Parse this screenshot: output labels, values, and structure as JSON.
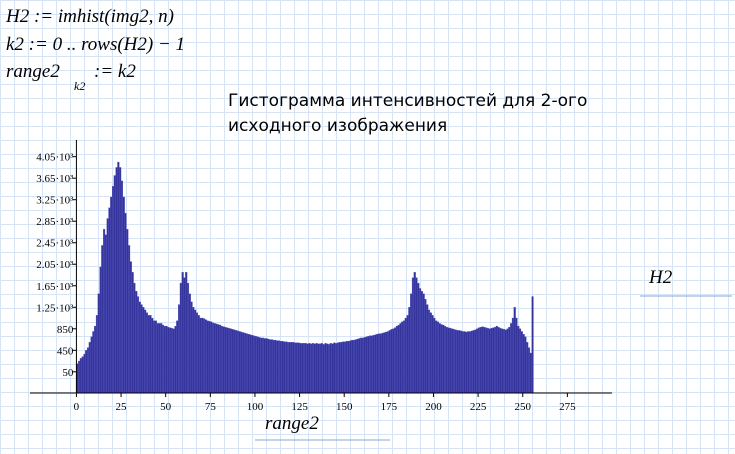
{
  "worksheet": {
    "line1": "H2 := imhist(img2, n)",
    "line2": "k2 := 0 .. rows(H2) − 1",
    "line3": {
      "lhs": "range2",
      "subscript": "k2",
      "rhs": ":= k2"
    }
  },
  "chart_data": {
    "type": "histogram",
    "title_lines": [
      "Гистограмма интенсивностей для 2-ого",
      "исходного изображения"
    ],
    "xlabel": "range2",
    "ylabel": "H2",
    "color": "#34349c",
    "xlim": [
      -26,
      300
    ],
    "ylim": [
      -344,
      4360
    ],
    "xticks": [
      0,
      25,
      50,
      75,
      100,
      125,
      150,
      175,
      200,
      225,
      250,
      275
    ],
    "yticks": [
      50,
      450,
      850,
      {
        "value": 1250,
        "label": "1.25·10³"
      },
      {
        "value": 1650,
        "label": "1.65·10³"
      },
      {
        "value": 2050,
        "label": "2.05·10³"
      },
      {
        "value": 2450,
        "label": "2.45·10³"
      },
      {
        "value": 2850,
        "label": "2.85·10³"
      },
      {
        "value": 3250,
        "label": "3.25·10³"
      },
      {
        "value": 3650,
        "label": "3.65·10³"
      },
      {
        "value": 4050,
        "label": "4.05·10³"
      }
    ],
    "values": [
      200,
      250,
      300,
      330,
      380,
      450,
      500,
      600,
      700,
      800,
      900,
      1100,
      1500,
      2000,
      2400,
      2700,
      2600,
      2900,
      3100,
      3300,
      3500,
      3700,
      3850,
      3950,
      3850,
      3600,
      3300,
      3000,
      2700,
      2400,
      2100,
      1900,
      1700,
      1550,
      1450,
      1350,
      1300,
      1250,
      1200,
      1150,
      1100,
      1100,
      1050,
      1000,
      1000,
      950,
      950,
      950,
      920,
      900,
      900,
      880,
      870,
      860,
      850,
      900,
      1000,
      1300,
      1700,
      1900,
      1800,
      1900,
      1700,
      1500,
      1350,
      1250,
      1200,
      1150,
      1100,
      1050,
      1050,
      1040,
      1020,
      1000,
      990,
      980,
      960,
      950,
      940,
      930,
      920,
      900,
      890,
      880,
      870,
      860,
      850,
      840,
      830,
      820,
      810,
      800,
      790,
      780,
      770,
      760,
      750,
      740,
      730,
      720,
      710,
      700,
      690,
      680,
      680,
      670,
      670,
      660,
      650,
      650,
      640,
      640,
      630,
      630,
      620,
      620,
      610,
      610,
      600,
      600,
      600,
      600,
      590,
      590,
      590,
      580,
      580,
      580,
      580,
      570,
      580,
      570,
      580,
      570,
      580,
      570,
      570,
      580,
      560,
      580,
      570,
      560,
      580,
      570,
      590,
      580,
      590,
      600,
      600,
      610,
      610,
      620,
      620,
      630,
      640,
      640,
      650,
      660,
      670,
      680,
      680,
      690,
      700,
      710,
      720,
      720,
      730,
      740,
      750,
      760,
      760,
      770,
      780,
      790,
      800,
      820,
      840,
      850,
      870,
      900,
      920,
      950,
      980,
      1000,
      1050,
      1100,
      1250,
      1500,
      1800,
      1900,
      1800,
      1700,
      1600,
      1550,
      1500,
      1400,
      1300,
      1200,
      1150,
      1100,
      1050,
      1000,
      980,
      950,
      930,
      920,
      900,
      880,
      870,
      860,
      850,
      840,
      830,
      820,
      820,
      810,
      800,
      800,
      790,
      800,
      800,
      810,
      820,
      830,
      850,
      870,
      880,
      890,
      880,
      870,
      860,
      850,
      860,
      870,
      880,
      900,
      880,
      860,
      850,
      840,
      830,
      850,
      880,
      950,
      1050,
      1250,
      1050,
      900,
      850,
      800,
      750,
      700,
      600,
      500,
      400,
      1450
    ]
  }
}
